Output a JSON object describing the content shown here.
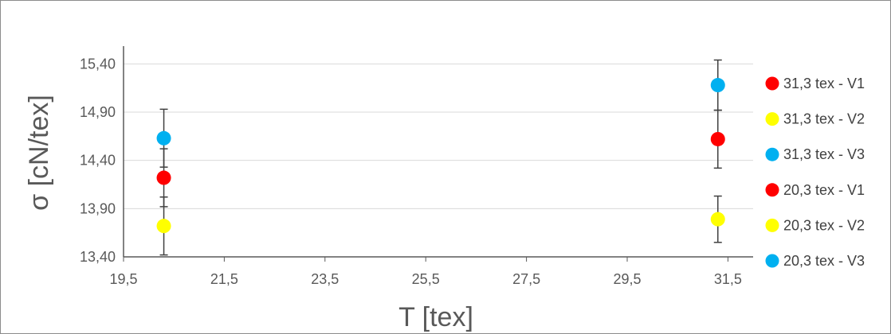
{
  "chart_data": {
    "type": "scatter",
    "title": "",
    "xlabel": "T [tex]",
    "ylabel": "σ [cN/tex]",
    "xlim": [
      19.5,
      32.0
    ],
    "ylim": [
      13.4,
      15.65
    ],
    "x_ticks": [
      "19,5",
      "21,5",
      "23,5",
      "25,5",
      "27,5",
      "29,5",
      "31,5"
    ],
    "x_tick_values": [
      19.5,
      21.5,
      23.5,
      25.5,
      27.5,
      29.5,
      31.5
    ],
    "y_ticks": [
      "13,40",
      "13,90",
      "14,40",
      "14,90",
      "15,40"
    ],
    "y_tick_values": [
      13.4,
      13.9,
      14.4,
      14.9,
      15.4
    ],
    "grid": "horizontal",
    "legend_position": "right",
    "series": [
      {
        "name": "31,3 tex - V1",
        "color": "#ff0000",
        "points": [
          {
            "x": 31.3,
            "y": 14.62,
            "err": 0.3
          }
        ]
      },
      {
        "name": "31,3 tex - V2",
        "color": "#ffff00",
        "points": [
          {
            "x": 31.3,
            "y": 13.79,
            "err": 0.24
          }
        ]
      },
      {
        "name": "31,3 tex - V3",
        "color": "#00b0f0",
        "points": [
          {
            "x": 31.3,
            "y": 15.18,
            "err": 0.26
          }
        ]
      },
      {
        "name": "20,3 tex - V1",
        "color": "#ff0000",
        "points": [
          {
            "x": 20.3,
            "y": 14.22,
            "err": 0.3
          }
        ]
      },
      {
        "name": "20,3 tex - V2",
        "color": "#ffff00",
        "points": [
          {
            "x": 20.3,
            "y": 13.72,
            "err": 0.3
          }
        ]
      },
      {
        "name": "20,3 tex - V3",
        "color": "#00b0f0",
        "points": [
          {
            "x": 20.3,
            "y": 14.63,
            "err": 0.3
          }
        ]
      }
    ]
  }
}
